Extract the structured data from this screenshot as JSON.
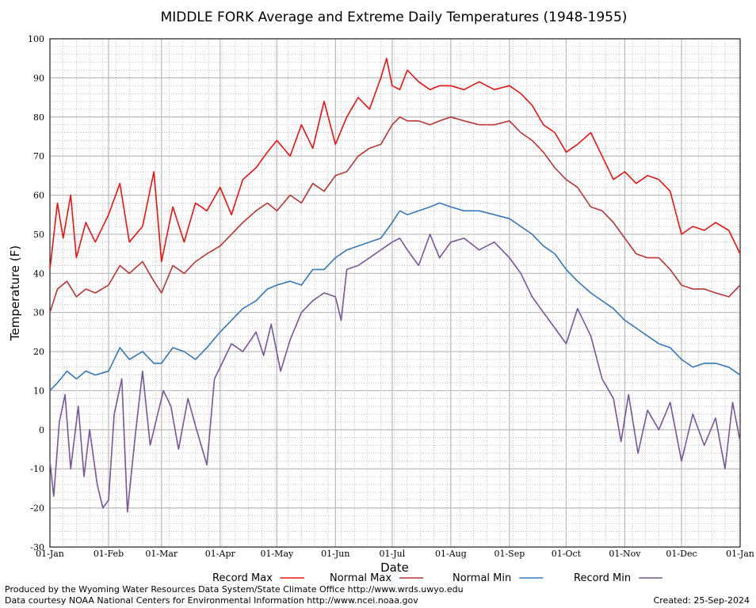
{
  "chart_data": {
    "type": "line",
    "title": "MIDDLE FORK Average and Extreme Daily Temperatures (1948-1955)",
    "xlabel": "Date",
    "ylabel": "Temperature (F)",
    "ylim": [
      -30,
      100
    ],
    "yticks": [
      -30,
      -20,
      -10,
      0,
      10,
      20,
      30,
      40,
      50,
      60,
      70,
      80,
      90,
      100
    ],
    "xlim_day_of_year": [
      1,
      366
    ],
    "xticks": [
      {
        "label": "01-Jan",
        "day": 1
      },
      {
        "label": "01-Feb",
        "day": 32
      },
      {
        "label": "01-Mar",
        "day": 60
      },
      {
        "label": "01-Apr",
        "day": 91
      },
      {
        "label": "01-May",
        "day": 121
      },
      {
        "label": "01-Jun",
        "day": 152
      },
      {
        "label": "01-Jul",
        "day": 182
      },
      {
        "label": "01-Aug",
        "day": 213
      },
      {
        "label": "01-Sep",
        "day": 244
      },
      {
        "label": "01-Oct",
        "day": 274
      },
      {
        "label": "01-Nov",
        "day": 305
      },
      {
        "label": "01-Dec",
        "day": 335
      },
      {
        "label": "01-Jan",
        "day": 366
      }
    ],
    "grid": true,
    "legend_position": "bottom",
    "series": [
      {
        "name": "Record Max",
        "color": "#ee1111",
        "x": [
          1,
          5,
          8,
          12,
          15,
          20,
          25,
          32,
          38,
          43,
          50,
          56,
          60,
          66,
          72,
          78,
          84,
          91,
          97,
          103,
          110,
          116,
          121,
          128,
          134,
          140,
          146,
          152,
          158,
          164,
          170,
          176,
          179,
          182,
          186,
          190,
          196,
          202,
          207,
          213,
          220,
          228,
          236,
          244,
          250,
          256,
          262,
          268,
          274,
          280,
          287,
          293,
          299,
          305,
          311,
          317,
          323,
          329,
          335,
          341,
          347,
          353,
          360,
          366
        ],
        "y": [
          41,
          58,
          49,
          60,
          44,
          53,
          48,
          55,
          63,
          48,
          52,
          66,
          43,
          57,
          48,
          58,
          56,
          62,
          55,
          64,
          67,
          71,
          74,
          70,
          78,
          72,
          84,
          73,
          80,
          85,
          82,
          90,
          95,
          88,
          87,
          92,
          89,
          87,
          88,
          88,
          87,
          89,
          87,
          88,
          86,
          83,
          78,
          76,
          71,
          73,
          76,
          70,
          64,
          66,
          63,
          65,
          64,
          61,
          50,
          52,
          51,
          53,
          51,
          45
        ]
      },
      {
        "name": "Normal Max",
        "color": "#bb3333",
        "x": [
          1,
          5,
          10,
          15,
          20,
          25,
          32,
          38,
          43,
          50,
          56,
          60,
          66,
          72,
          78,
          84,
          91,
          97,
          103,
          110,
          116,
          121,
          128,
          134,
          140,
          146,
          152,
          158,
          164,
          170,
          176,
          182,
          186,
          190,
          196,
          202,
          207,
          213,
          220,
          228,
          236,
          244,
          250,
          256,
          262,
          268,
          274,
          280,
          287,
          293,
          299,
          305,
          311,
          317,
          323,
          329,
          335,
          341,
          347,
          353,
          360,
          366
        ],
        "y": [
          30,
          36,
          38,
          34,
          36,
          35,
          37,
          42,
          40,
          43,
          38,
          35,
          42,
          40,
          43,
          45,
          47,
          50,
          53,
          56,
          58,
          56,
          60,
          58,
          63,
          61,
          65,
          66,
          70,
          72,
          73,
          78,
          80,
          79,
          79,
          78,
          79,
          80,
          79,
          78,
          78,
          79,
          76,
          74,
          71,
          67,
          64,
          62,
          57,
          56,
          53,
          49,
          45,
          44,
          44,
          41,
          37,
          36,
          36,
          35,
          34,
          37
        ]
      },
      {
        "name": "Normal Min",
        "color": "#3377bb",
        "x": [
          1,
          5,
          10,
          15,
          20,
          25,
          32,
          38,
          43,
          50,
          56,
          60,
          66,
          72,
          78,
          84,
          91,
          97,
          103,
          110,
          116,
          121,
          128,
          134,
          140,
          146,
          152,
          158,
          164,
          170,
          176,
          182,
          186,
          190,
          196,
          202,
          207,
          213,
          220,
          228,
          236,
          244,
          250,
          256,
          262,
          268,
          274,
          280,
          287,
          293,
          299,
          305,
          311,
          317,
          323,
          329,
          335,
          341,
          347,
          353,
          360,
          366
        ],
        "y": [
          10,
          12,
          15,
          13,
          15,
          14,
          15,
          21,
          18,
          20,
          17,
          17,
          21,
          20,
          18,
          21,
          25,
          28,
          31,
          33,
          36,
          37,
          38,
          37,
          41,
          41,
          44,
          46,
          47,
          48,
          49,
          53,
          56,
          55,
          56,
          57,
          58,
          57,
          56,
          56,
          55,
          54,
          52,
          50,
          47,
          45,
          41,
          38,
          35,
          33,
          31,
          28,
          26,
          24,
          22,
          21,
          18,
          16,
          17,
          17,
          16,
          14
        ]
      },
      {
        "name": "Record Min",
        "color": "#775599",
        "x": [
          1,
          3,
          6,
          9,
          12,
          16,
          19,
          22,
          26,
          29,
          32,
          35,
          39,
          42,
          46,
          50,
          54,
          57,
          61,
          65,
          69,
          74,
          78,
          84,
          88,
          92,
          97,
          103,
          110,
          114,
          118,
          123,
          128,
          134,
          140,
          146,
          152,
          155,
          158,
          164,
          170,
          176,
          182,
          186,
          190,
          196,
          202,
          207,
          213,
          220,
          228,
          236,
          244,
          250,
          256,
          262,
          268,
          274,
          280,
          287,
          293,
          299,
          303,
          307,
          312,
          317,
          323,
          329,
          335,
          341,
          347,
          353,
          358,
          362,
          366
        ],
        "y": [
          -8,
          -17,
          2,
          9,
          -10,
          6,
          -12,
          0,
          -14,
          -20,
          -18,
          4,
          13,
          -21,
          -2,
          15,
          -4,
          2,
          10,
          6,
          -5,
          8,
          1,
          -9,
          13,
          17,
          22,
          20,
          25,
          19,
          27,
          15,
          23,
          30,
          33,
          35,
          34,
          28,
          41,
          42,
          44,
          46,
          48,
          49,
          46,
          42,
          50,
          44,
          48,
          49,
          46,
          48,
          44,
          40,
          34,
          30,
          26,
          22,
          31,
          24,
          13,
          8,
          -3,
          9,
          -6,
          5,
          0,
          7,
          -8,
          4,
          -4,
          3,
          -10,
          7,
          -3
        ]
      }
    ]
  },
  "legend": {
    "items": [
      {
        "label": "Record Max",
        "color": "#ee1111"
      },
      {
        "label": "Normal Max",
        "color": "#bb3333"
      },
      {
        "label": "Normal Min",
        "color": "#3377bb"
      },
      {
        "label": "Record Min",
        "color": "#775599"
      }
    ]
  },
  "footer": {
    "produced_by": "Produced by the Wyoming Water Resources Data System/State Climate Office http://www.wrds.uwyo.edu",
    "data_courtesy": "Data courtesy NOAA National Centers for Environmental Information http://www.ncei.noaa.gov",
    "created": "Created:  25-Sep-2024"
  }
}
